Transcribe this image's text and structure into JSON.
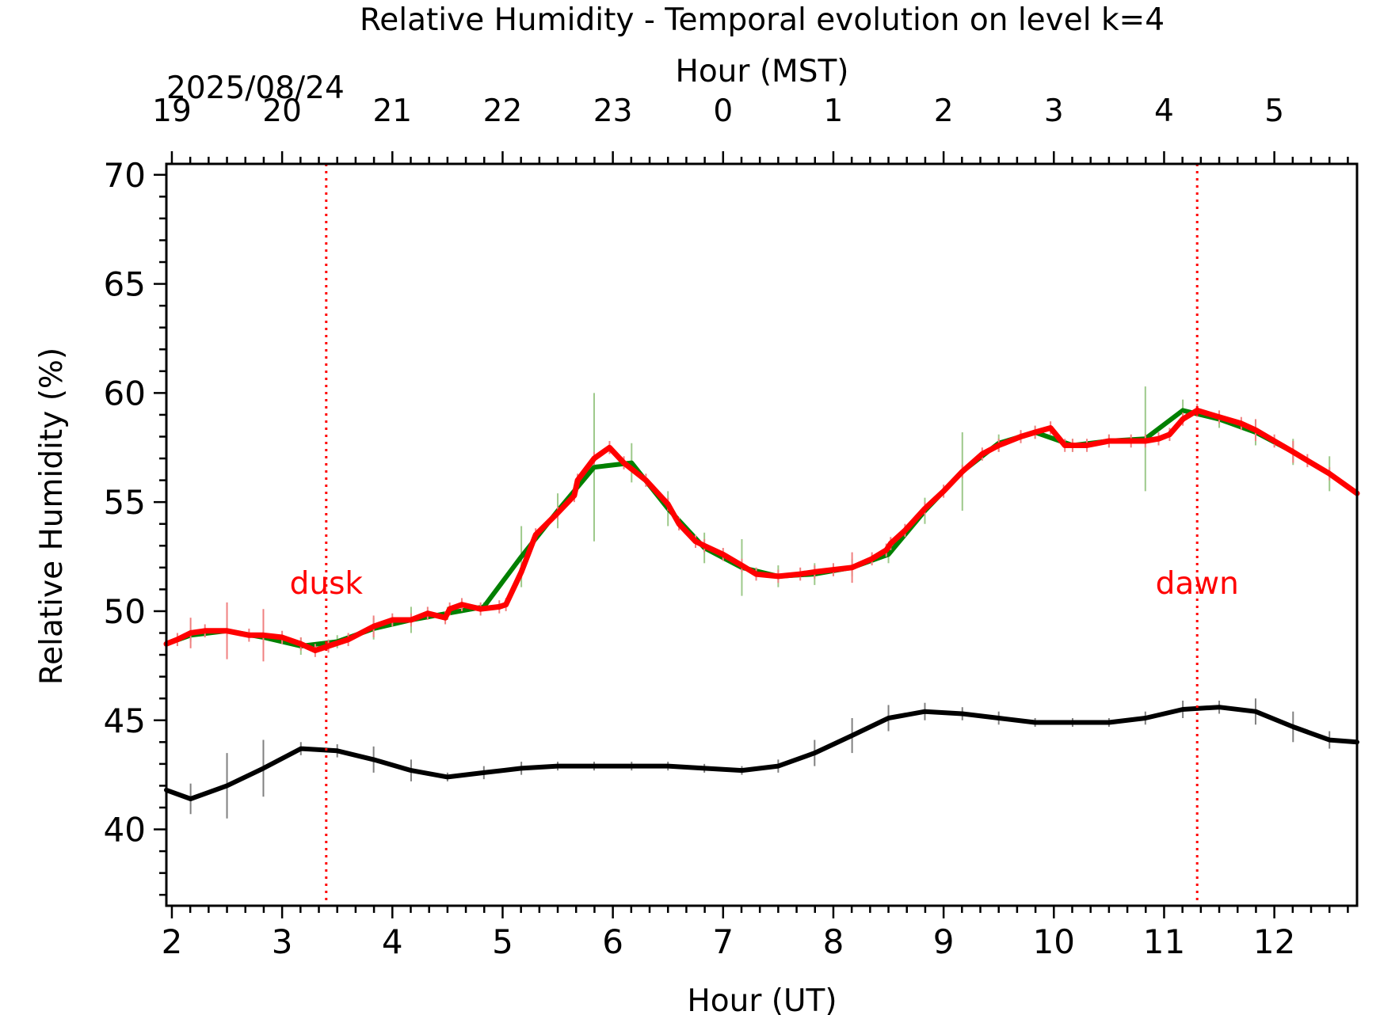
{
  "chart_data": {
    "type": "line",
    "title": "Relative Humidity - Temporal evolution on level k=4",
    "xlabel": "Hour (UT)",
    "ylabel": "Relative Humidity (%)",
    "top_axis": {
      "label": "Hour (MST)",
      "date": "2025/08/24",
      "offset_hours": -7,
      "tick_labels": [
        "19",
        "20",
        "21",
        "22",
        "23",
        "0",
        "1",
        "2",
        "3",
        "4",
        "5"
      ]
    },
    "xlim": [
      1.95,
      12.75
    ],
    "ylim": [
      36.5,
      70.5
    ],
    "xticks": [
      2,
      3,
      4,
      5,
      6,
      7,
      8,
      9,
      10,
      11,
      12
    ],
    "xtick_labels": [
      "2",
      "3",
      "4",
      "5",
      "6",
      "7",
      "8",
      "9",
      "10",
      "11",
      "12"
    ],
    "yticks": [
      40,
      45,
      50,
      55,
      60,
      65,
      70
    ],
    "ytick_labels": [
      "40",
      "45",
      "50",
      "55",
      "60",
      "65",
      "70"
    ],
    "grid": false,
    "legend": "none",
    "vlines": [
      {
        "x": 3.4,
        "label": "dusk",
        "color": "#ff0000"
      },
      {
        "x": 11.3,
        "label": "dawn",
        "color": "#ff0000"
      }
    ],
    "series": [
      {
        "color": "#000000",
        "errorbar_color": "#808080",
        "x": [
          1.95,
          2.17,
          2.5,
          2.83,
          3.17,
          3.5,
          3.83,
          4.17,
          4.5,
          4.83,
          5.17,
          5.5,
          5.83,
          6.17,
          6.5,
          6.83,
          7.17,
          7.5,
          7.83,
          8.17,
          8.5,
          8.83,
          9.17,
          9.5,
          9.83,
          10.17,
          10.5,
          10.83,
          11.17,
          11.5,
          11.83,
          12.17,
          12.5,
          12.75
        ],
        "y": [
          41.8,
          41.4,
          42.0,
          42.8,
          43.7,
          43.6,
          43.2,
          42.7,
          42.4,
          42.6,
          42.8,
          42.9,
          42.9,
          42.9,
          42.9,
          42.8,
          42.7,
          42.9,
          43.5,
          44.3,
          45.1,
          45.4,
          45.3,
          45.1,
          44.9,
          44.9,
          44.9,
          45.1,
          45.5,
          45.6,
          45.4,
          44.7,
          44.1,
          44.0
        ],
        "err": [
          0.0,
          0.7,
          1.5,
          1.3,
          0.3,
          0.3,
          0.6,
          0.5,
          0.2,
          0.3,
          0.3,
          0.2,
          0.2,
          0.2,
          0.2,
          0.2,
          0.2,
          0.3,
          0.6,
          0.8,
          0.6,
          0.4,
          0.3,
          0.3,
          0.2,
          0.2,
          0.2,
          0.3,
          0.4,
          0.3,
          0.6,
          0.7,
          0.4,
          0.0
        ]
      },
      {
        "color": "#008000",
        "errorbar_color": "#9dc98a",
        "x": [
          1.95,
          2.17,
          2.5,
          2.83,
          3.17,
          3.5,
          3.83,
          4.17,
          4.5,
          4.83,
          5.17,
          5.5,
          5.83,
          6.17,
          6.5,
          6.83,
          7.17,
          7.5,
          7.83,
          8.17,
          8.5,
          8.83,
          9.17,
          9.5,
          9.83,
          10.17,
          10.5,
          10.83,
          11.17,
          11.5,
          11.83,
          12.17,
          12.5,
          12.75
        ],
        "y": [
          48.5,
          48.9,
          49.1,
          48.8,
          48.4,
          48.6,
          49.2,
          49.6,
          49.9,
          50.2,
          52.5,
          54.6,
          56.6,
          56.8,
          54.7,
          52.9,
          52.0,
          51.6,
          51.7,
          52.0,
          52.6,
          54.6,
          56.4,
          57.7,
          58.2,
          57.6,
          57.8,
          57.9,
          59.2,
          58.8,
          58.2,
          57.3,
          56.3,
          55.4
        ],
        "err": [
          0.0,
          0.3,
          0.3,
          0.3,
          0.4,
          0.3,
          0.5,
          0.6,
          0.3,
          0.2,
          1.4,
          0.8,
          3.4,
          0.9,
          0.8,
          0.7,
          1.3,
          0.5,
          0.5,
          0.4,
          0.4,
          0.6,
          1.8,
          0.4,
          0.3,
          0.3,
          0.3,
          2.4,
          0.5,
          0.4,
          0.6,
          0.6,
          0.8,
          0.0
        ]
      },
      {
        "color": "#ff0000",
        "errorbar_color": "#f08080",
        "x": [
          1.95,
          2.05,
          2.17,
          2.3,
          2.5,
          2.7,
          2.83,
          3.0,
          3.17,
          3.3,
          3.42,
          3.6,
          3.83,
          4.0,
          4.17,
          4.32,
          4.48,
          4.52,
          4.63,
          4.8,
          4.97,
          5.03,
          5.17,
          5.3,
          5.5,
          5.65,
          5.68,
          5.83,
          5.97,
          6.1,
          6.3,
          6.5,
          6.6,
          6.75,
          6.83,
          7.0,
          7.17,
          7.3,
          7.5,
          7.7,
          7.83,
          8.0,
          8.17,
          8.35,
          8.48,
          8.52,
          8.65,
          8.83,
          9.0,
          9.17,
          9.35,
          9.5,
          9.7,
          9.83,
          9.97,
          10.1,
          10.17,
          10.3,
          10.5,
          10.7,
          10.83,
          10.95,
          11.05,
          11.17,
          11.3,
          11.5,
          11.7,
          11.83,
          12.0,
          12.17,
          12.3,
          12.5,
          12.75
        ],
        "y": [
          48.5,
          48.7,
          49.0,
          49.1,
          49.1,
          48.9,
          48.9,
          48.8,
          48.5,
          48.2,
          48.4,
          48.7,
          49.3,
          49.6,
          49.6,
          49.9,
          49.7,
          50.1,
          50.3,
          50.1,
          50.2,
          50.3,
          51.8,
          53.5,
          54.5,
          55.3,
          56.0,
          57.0,
          57.5,
          56.8,
          56.0,
          54.9,
          54.0,
          53.2,
          53.0,
          52.6,
          52.1,
          51.7,
          51.6,
          51.7,
          51.8,
          51.9,
          52.0,
          52.4,
          52.8,
          53.1,
          53.7,
          54.7,
          55.5,
          56.4,
          57.2,
          57.6,
          58.0,
          58.2,
          58.4,
          57.6,
          57.6,
          57.6,
          57.8,
          57.8,
          57.8,
          57.9,
          58.1,
          58.8,
          59.2,
          58.9,
          58.6,
          58.3,
          57.8,
          57.3,
          56.9,
          56.3,
          55.4
        ],
        "err": [
          0.0,
          0.3,
          0.7,
          0.3,
          1.3,
          0.3,
          1.2,
          0.3,
          0.3,
          0.3,
          0.3,
          0.3,
          0.5,
          0.3,
          0.3,
          0.3,
          0.3,
          0.3,
          0.3,
          0.3,
          0.3,
          0.3,
          0.3,
          0.3,
          0.3,
          0.3,
          0.3,
          0.3,
          0.3,
          0.3,
          0.3,
          0.3,
          0.3,
          0.3,
          0.3,
          0.3,
          0.3,
          0.3,
          0.3,
          0.3,
          0.3,
          0.3,
          0.7,
          0.3,
          0.3,
          0.3,
          0.3,
          0.3,
          0.3,
          0.3,
          0.3,
          0.3,
          0.3,
          0.3,
          0.3,
          0.3,
          0.3,
          0.3,
          0.3,
          0.3,
          0.3,
          0.3,
          0.3,
          0.3,
          0.3,
          0.3,
          0.3,
          0.5,
          0.3,
          0.5,
          0.3,
          0.3,
          0.0
        ]
      }
    ]
  }
}
